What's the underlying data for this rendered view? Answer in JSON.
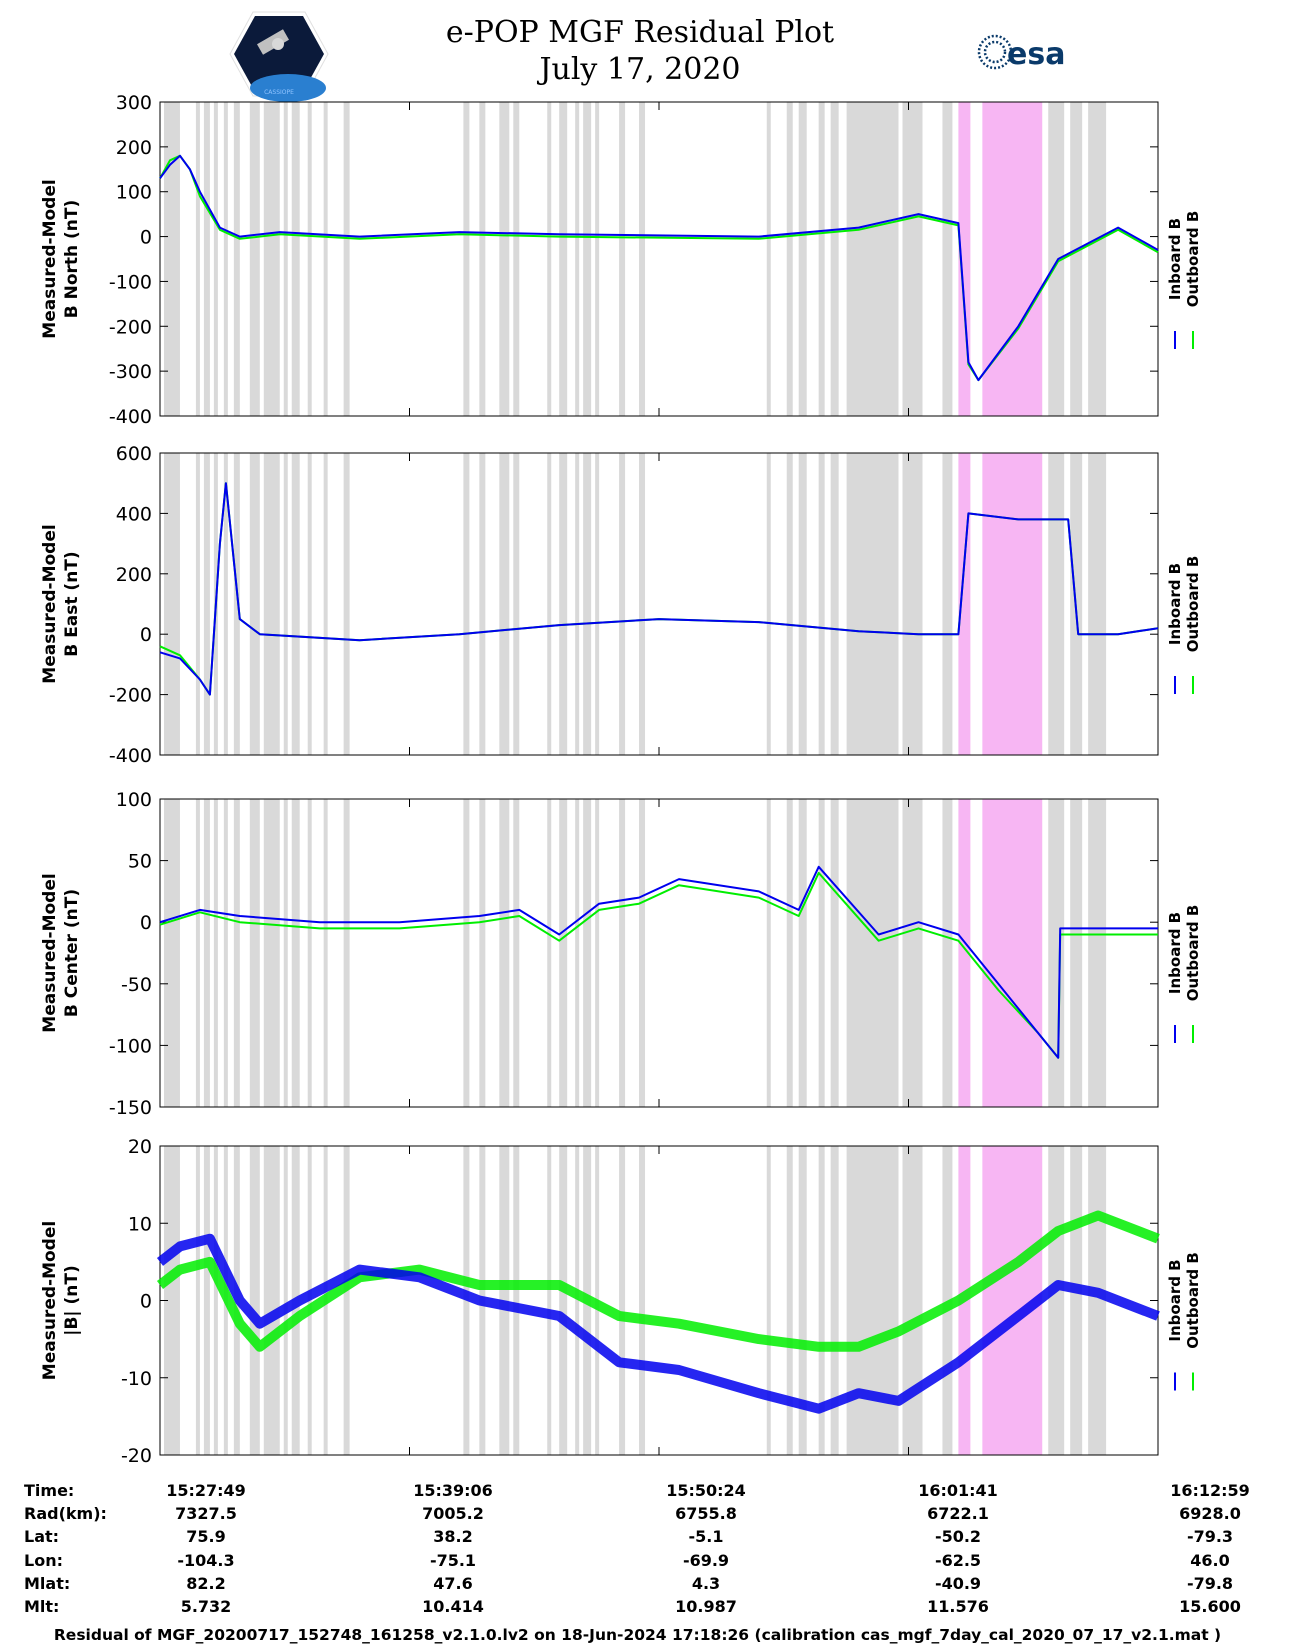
{
  "header": {
    "title_line1": "e-POP MGF Residual Plot",
    "title_line2": "July 17, 2020",
    "left_logo_text": "CASSIOPE",
    "right_logo_text": "esa"
  },
  "colors": {
    "inboard": "#0000ee",
    "outboard": "#00ee00",
    "shade": "#d9d9d9",
    "highlight": "#f7b6f3"
  },
  "legend": {
    "inboard": "Inboard B",
    "outboard": "Outboard B"
  },
  "chart_data": [
    {
      "type": "line",
      "ylabel_line1": "Measured-Model",
      "ylabel_line2": "B North (nT)",
      "ylim": [
        -400,
        300
      ],
      "yticks": [
        "300",
        "200",
        "100",
        "0",
        "-100",
        "-200",
        "-300",
        "-400"
      ],
      "x": [
        0,
        0.5,
        1,
        1.5,
        2,
        3,
        4,
        6,
        10,
        15,
        20,
        30,
        35,
        38,
        40,
        40.5,
        41,
        43,
        45,
        48,
        50
      ],
      "series": [
        {
          "name": "Inboard B",
          "values": [
            130,
            160,
            180,
            150,
            100,
            20,
            0,
            10,
            0,
            10,
            5,
            0,
            20,
            50,
            30,
            -280,
            -320,
            -200,
            -50,
            20,
            -30
          ]
        },
        {
          "name": "Outboard B",
          "values": [
            130,
            170,
            180,
            150,
            90,
            15,
            -5,
            5,
            -5,
            5,
            0,
            -5,
            15,
            45,
            25,
            -285,
            -320,
            -205,
            -55,
            15,
            -35
          ]
        }
      ]
    },
    {
      "type": "line",
      "ylabel_line1": "Measured-Model",
      "ylabel_line2": "B East (nT)",
      "ylim": [
        -400,
        600
      ],
      "yticks": [
        "600",
        "400",
        "200",
        "0",
        "-200",
        "-400"
      ],
      "x": [
        0,
        1,
        2,
        2.5,
        3,
        3.3,
        4,
        5,
        10,
        15,
        20,
        25,
        30,
        35,
        38,
        40,
        40.5,
        43,
        45.5,
        46,
        48,
        50
      ],
      "series": [
        {
          "name": "Inboard B",
          "values": [
            -60,
            -80,
            -150,
            -200,
            300,
            500,
            50,
            0,
            -20,
            0,
            30,
            50,
            40,
            10,
            0,
            0,
            400,
            380,
            380,
            0,
            0,
            20
          ]
        },
        {
          "name": "Outboard B",
          "values": [
            -40,
            -70,
            -150,
            -200,
            300,
            500,
            50,
            0,
            -20,
            0,
            30,
            50,
            40,
            10,
            0,
            0,
            400,
            380,
            380,
            0,
            0,
            20
          ]
        }
      ]
    },
    {
      "type": "line",
      "ylabel_line1": "Measured-Model",
      "ylabel_line2": "B Center (nT)",
      "ylim": [
        -150,
        100
      ],
      "yticks": [
        "100",
        "50",
        "0",
        "-50",
        "-100",
        "-150"
      ],
      "x": [
        0,
        2,
        4,
        8,
        12,
        16,
        18,
        20,
        22,
        24,
        26,
        30,
        32,
        33,
        36,
        38,
        40,
        42,
        44,
        45,
        45.1,
        48,
        50
      ],
      "series": [
        {
          "name": "Inboard B",
          "values": [
            0,
            10,
            5,
            0,
            0,
            5,
            10,
            -10,
            15,
            20,
            35,
            25,
            10,
            45,
            -10,
            0,
            -10,
            -50,
            -90,
            -110,
            -5,
            -5,
            -5
          ]
        },
        {
          "name": "Outboard B",
          "values": [
            -2,
            8,
            0,
            -5,
            -5,
            0,
            5,
            -15,
            10,
            15,
            30,
            20,
            5,
            40,
            -15,
            -5,
            -15,
            -55,
            -90,
            -110,
            -10,
            -10,
            -10
          ]
        }
      ]
    },
    {
      "type": "line",
      "ylabel_line1": "Measured-Model",
      "ylabel_line2": "|B| (nT)",
      "ylim": [
        -20,
        20
      ],
      "yticks": [
        "20",
        "10",
        "0",
        "-10",
        "-20"
      ],
      "x": [
        0,
        1,
        2.5,
        4,
        5,
        7,
        10,
        13,
        16,
        20,
        23,
        26,
        30,
        33,
        35,
        37,
        40,
        43,
        45,
        47,
        50
      ],
      "series": [
        {
          "name": "Inboard B",
          "values": [
            5,
            7,
            8,
            0,
            -3,
            0,
            4,
            3,
            0,
            -2,
            -8,
            -9,
            -12,
            -14,
            -12,
            -13,
            -8,
            -2,
            2,
            1,
            -2
          ]
        },
        {
          "name": "Outboard B",
          "values": [
            2,
            4,
            5,
            -3,
            -6,
            -2,
            3,
            4,
            2,
            2,
            -2,
            -3,
            -5,
            -6,
            -6,
            -4,
            0,
            5,
            9,
            11,
            8
          ]
        }
      ]
    }
  ],
  "table": {
    "labels": [
      "Time:",
      "Rad(km):",
      "Lat:",
      "Lon:",
      "Mlat:",
      "Mlt:"
    ],
    "columns": [
      [
        "15:27:49",
        "7327.5",
        "75.9",
        "-104.3",
        "82.2",
        "5.732"
      ],
      [
        "15:39:06",
        "7005.2",
        "38.2",
        "-75.1",
        "47.6",
        "10.414"
      ],
      [
        "15:50:24",
        "6755.8",
        "-5.1",
        "-69.9",
        "4.3",
        "10.987"
      ],
      [
        "16:01:41",
        "6722.1",
        "-50.2",
        "-62.5",
        "-40.9",
        "11.576"
      ],
      [
        "16:12:59",
        "6928.0",
        "-79.3",
        "46.0",
        "-79.8",
        "15.600"
      ]
    ]
  },
  "footer": "Residual of MGF_20200717_152748_161258_v2.1.0.lv2 on 18-Jun-2024 17:18:26 (calibration cas_mgf_7day_cal_2020_07_17_v2.1.mat )"
}
